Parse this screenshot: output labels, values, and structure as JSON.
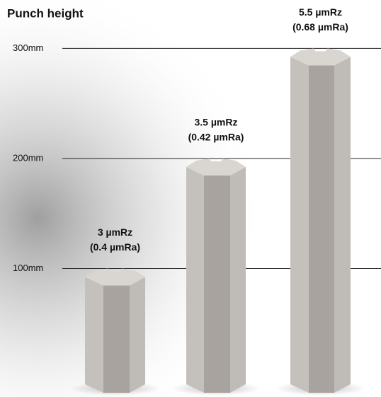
{
  "chart_data": {
    "type": "bar",
    "title": "Punch height",
    "categories": [
      "3 µmRz",
      "3.5 µmRz",
      "5.5 µmRz"
    ],
    "category_notes": [
      "(0.4 µmRa)",
      "(0.42 µmRa)",
      "(0.68 µmRa)"
    ],
    "values": [
      100,
      200,
      300
    ],
    "color": "#c4c1bc",
    "ylim": [
      0,
      344
    ],
    "yticks": [
      {
        "value": 100,
        "label": "100mm"
      },
      {
        "value": 200,
        "label": "200mm"
      },
      {
        "value": 300,
        "label": "300mm"
      }
    ],
    "grid": true
  }
}
